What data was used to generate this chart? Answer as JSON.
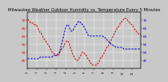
{
  "title": "Milwaukee Weather Outdoor Humidity vs. Temperature Every 5 Minutes",
  "line1_color": "#cc0000",
  "line2_color": "#0000cc",
  "background_color": "#c8c8c8",
  "plot_bg_color": "#c8c8c8",
  "grid_color": "#ffffff",
  "tick_fontsize": 3.0,
  "title_fontsize": 3.8,
  "linewidth": 0.7,
  "temp_values": [
    70,
    70,
    69,
    69,
    68,
    68,
    68,
    68,
    67,
    67,
    67,
    67,
    66,
    65,
    64,
    63,
    62,
    62,
    61,
    60,
    59,
    58,
    58,
    57,
    56,
    55,
    55,
    54,
    53,
    52,
    51,
    50,
    50,
    49,
    49,
    49,
    48,
    48,
    48,
    48,
    49,
    50,
    51,
    52,
    53,
    53,
    54,
    55,
    56,
    57,
    57,
    57,
    56,
    55,
    53,
    52,
    50,
    49,
    48,
    47,
    46,
    45,
    45,
    45,
    45,
    46,
    47,
    48,
    49,
    50,
    50,
    50,
    49,
    49,
    48,
    47,
    46,
    45,
    45,
    44,
    43,
    43,
    42,
    42,
    42,
    42,
    42,
    42,
    43,
    43,
    44,
    45,
    46,
    47,
    47,
    48,
    49,
    50,
    51,
    52,
    53,
    53,
    54,
    55,
    56,
    57,
    58,
    59,
    60,
    61,
    62,
    63,
    64,
    65,
    65,
    66,
    67,
    68,
    68,
    69,
    70,
    70,
    71,
    71,
    71,
    70,
    70,
    69,
    69,
    68,
    68,
    67,
    67,
    66,
    65,
    64,
    64,
    63,
    62,
    62,
    61,
    61,
    61,
    61
  ],
  "humidity_values": [
    46,
    46,
    46,
    46,
    46,
    46,
    46,
    46,
    46,
    46,
    46,
    46,
    46,
    46,
    46,
    46,
    47,
    47,
    47,
    47,
    47,
    47,
    47,
    47,
    47,
    47,
    47,
    47,
    47,
    47,
    47,
    47,
    48,
    48,
    48,
    48,
    48,
    48,
    49,
    49,
    50,
    51,
    53,
    55,
    57,
    59,
    61,
    63,
    65,
    66,
    67,
    67,
    66,
    65,
    64,
    63,
    63,
    63,
    64,
    65,
    66,
    67,
    67,
    68,
    69,
    69,
    69,
    68,
    68,
    67,
    67,
    66,
    65,
    64,
    63,
    62,
    61,
    60,
    60,
    60,
    60,
    60,
    60,
    60,
    60,
    60,
    60,
    60,
    60,
    60,
    60,
    60,
    60,
    60,
    60,
    60,
    59,
    59,
    59,
    58,
    58,
    57,
    57,
    56,
    56,
    55,
    55,
    55,
    54,
    54,
    54,
    53,
    53,
    53,
    53,
    53,
    53,
    53,
    53,
    53,
    53,
    52,
    52,
    52,
    52,
    52,
    52,
    52,
    52,
    52,
    52,
    52,
    52,
    52,
    52,
    52,
    52,
    52,
    52,
    52,
    52,
    52,
    52,
    52
  ],
  "ylim_left": [
    40,
    75
  ],
  "ylim_right": [
    40,
    75
  ],
  "yticks_left": [
    45,
    50,
    55,
    60,
    65,
    70
  ],
  "yticks_right": [
    45,
    50,
    55,
    60,
    65,
    70
  ],
  "n_points": 144,
  "xtick_every": 12
}
